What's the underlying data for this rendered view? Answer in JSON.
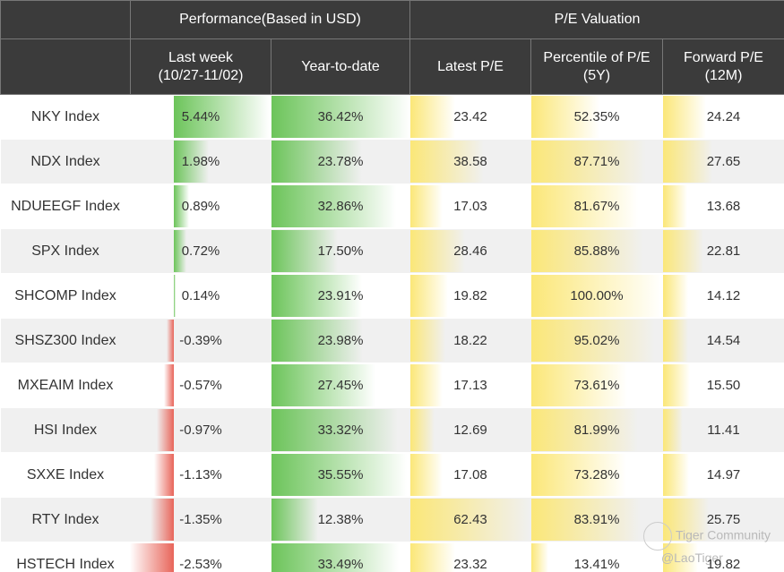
{
  "header": {
    "group1": "Performance(Based in USD)",
    "group2": "P/E Valuation",
    "cols": [
      "Last week\n(10/27-11/02)",
      "Year-to-date",
      "Latest P/E",
      "Percentile of P/E\n(5Y)",
      "Forward P/E\n(12M)"
    ]
  },
  "rows": [
    {
      "name": "NKY Index",
      "lw": "5.44%",
      "ytd": "36.42%",
      "pe": "23.42",
      "pct": "52.35%",
      "fpe": "24.24"
    },
    {
      "name": "NDX Index",
      "lw": "1.98%",
      "ytd": "23.78%",
      "pe": "38.58",
      "pct": "87.71%",
      "fpe": "27.65"
    },
    {
      "name": "NDUEEGF Index",
      "lw": "0.89%",
      "ytd": "32.86%",
      "pe": "17.03",
      "pct": "81.67%",
      "fpe": "13.68"
    },
    {
      "name": "SPX Index",
      "lw": "0.72%",
      "ytd": "17.50%",
      "pe": "28.46",
      "pct": "85.88%",
      "fpe": "22.81"
    },
    {
      "name": "SHCOMP Index",
      "lw": "0.14%",
      "ytd": "23.91%",
      "pe": "19.82",
      "pct": "100.00%",
      "fpe": "14.12"
    },
    {
      "name": "SHSZ300 Index",
      "lw": "-0.39%",
      "ytd": "23.98%",
      "pe": "18.22",
      "pct": "95.02%",
      "fpe": "14.54"
    },
    {
      "name": "MXEAIM Index",
      "lw": "-0.57%",
      "ytd": "27.45%",
      "pe": "17.13",
      "pct": "73.61%",
      "fpe": "15.50"
    },
    {
      "name": "HSI Index",
      "lw": "-0.97%",
      "ytd": "33.32%",
      "pe": "12.69",
      "pct": "81.99%",
      "fpe": "11.41"
    },
    {
      "name": "SXXE Index",
      "lw": "-1.13%",
      "ytd": "35.55%",
      "pe": "17.08",
      "pct": "73.28%",
      "fpe": "14.97"
    },
    {
      "name": "RTY Index",
      "lw": "-1.35%",
      "ytd": "12.38%",
      "pe": "62.43",
      "pct": "83.91%",
      "fpe": "25.75"
    },
    {
      "name": "HSTECH Index",
      "lw": "-2.53%",
      "ytd": "33.49%",
      "pe": "23.32",
      "pct": "13.41%",
      "fpe": "19.82"
    }
  ],
  "watermark": {
    "line1": "Tiger Community",
    "line2": "@LaoTiger"
  },
  "colors": {
    "header": "#3b3b3b",
    "positive": "#6cc45a",
    "negative": "#e8655a",
    "valuation": "#fbe778",
    "alt_row": "#f0f0f0"
  }
}
